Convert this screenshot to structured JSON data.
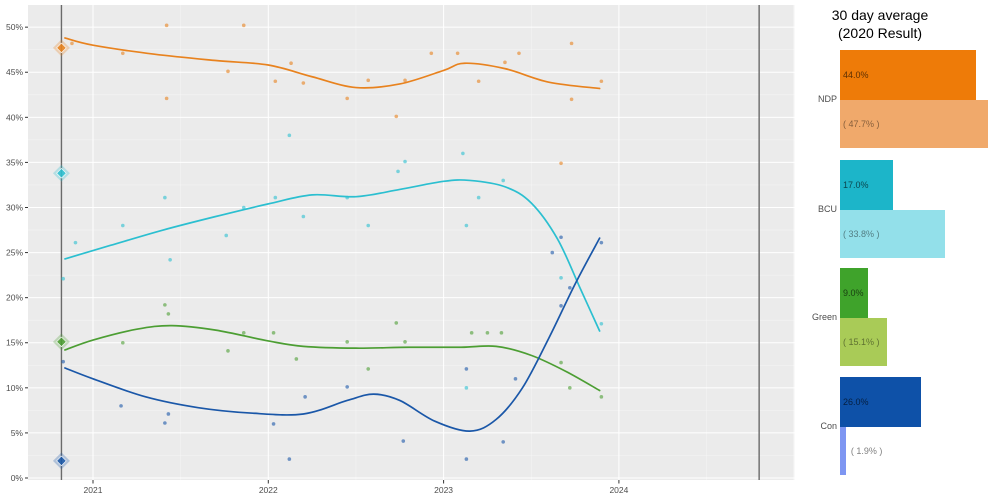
{
  "legend_panel": {
    "title_line1": "30 day average",
    "title_line2": "(2020 Result)",
    "rows": [
      {
        "party": "NDP",
        "avg_pct": 44.0,
        "avg_label": "44.0%",
        "result_pct": 47.7,
        "result_label": "( 47.7% )",
        "avg_color": "#EE7B08",
        "result_color": "#F0A96B"
      },
      {
        "party": "BCU",
        "avg_pct": 17.0,
        "avg_label": "17.0%",
        "result_pct": 33.8,
        "result_label": "( 33.8% )",
        "avg_color": "#1CB5C9",
        "result_color": "#93E0EA"
      },
      {
        "party": "Green",
        "avg_pct": 9.0,
        "avg_label": "9.0%",
        "result_pct": 15.1,
        "result_label": "( 15.1% )",
        "avg_color": "#3FA32B",
        "result_color": "#A9CB57"
      },
      {
        "party": "Con",
        "avg_pct": 26.0,
        "avg_label": "26.0%",
        "result_pct": 1.9,
        "result_label": "( 1.9% )",
        "avg_color": "#0E51A8",
        "result_color": "#7E96F2"
      }
    ]
  },
  "chart_data": {
    "type": "line",
    "title": "",
    "xlabel": "",
    "ylabel": "",
    "grid": "on",
    "x_axis": {
      "tick_values": [
        2021,
        2022,
        2023,
        2024
      ],
      "tick_labels": [
        "2021",
        "2022",
        "2023",
        "2024"
      ],
      "range": [
        2020.63,
        2025.0
      ]
    },
    "y_axis": {
      "tick_values": [
        0,
        5,
        10,
        15,
        20,
        25,
        30,
        35,
        40,
        45,
        50
      ],
      "tick_labels": [
        "0%",
        "5%",
        "10%",
        "15%",
        "20%",
        "25%",
        "30%",
        "35%",
        "40%",
        "45%",
        "50%"
      ],
      "range": [
        0,
        52.5
      ]
    },
    "election_lines": [
      2020.82,
      2024.8
    ],
    "series": [
      {
        "name": "NDP",
        "color": "#E8821E",
        "result_2020": 47.7,
        "trend": [
          [
            2020.84,
            48.8
          ],
          [
            2021.0,
            48.0
          ],
          [
            2021.35,
            47.0
          ],
          [
            2021.7,
            46.3
          ],
          [
            2022.0,
            45.8
          ],
          [
            2022.25,
            44.5
          ],
          [
            2022.5,
            43.3
          ],
          [
            2022.75,
            43.7
          ],
          [
            2023.0,
            45.2
          ],
          [
            2023.12,
            46.0
          ],
          [
            2023.35,
            45.4
          ],
          [
            2023.6,
            43.9
          ],
          [
            2023.89,
            43.2
          ]
        ],
        "polls": [
          [
            2020.88,
            48.2
          ],
          [
            2021.17,
            47.1
          ],
          [
            2021.42,
            50.2
          ],
          [
            2021.42,
            42.1
          ],
          [
            2021.77,
            45.1
          ],
          [
            2021.86,
            50.2
          ],
          [
            2022.04,
            44.0
          ],
          [
            2022.13,
            46.0
          ],
          [
            2022.2,
            43.8
          ],
          [
            2022.45,
            42.1
          ],
          [
            2022.57,
            44.1
          ],
          [
            2022.73,
            40.1
          ],
          [
            2022.78,
            44.1
          ],
          [
            2022.93,
            47.1
          ],
          [
            2023.08,
            47.1
          ],
          [
            2023.2,
            44.0
          ],
          [
            2023.35,
            46.1
          ],
          [
            2023.43,
            47.1
          ],
          [
            2023.67,
            34.9
          ],
          [
            2023.73,
            48.2
          ],
          [
            2023.73,
            42.0
          ],
          [
            2023.9,
            44.0
          ]
        ]
      },
      {
        "name": "BCU",
        "color": "#2BBFD0",
        "result_2020": 33.8,
        "trend": [
          [
            2020.84,
            24.3
          ],
          [
            2021.1,
            25.8
          ],
          [
            2021.4,
            27.5
          ],
          [
            2021.7,
            29.0
          ],
          [
            2022.0,
            30.4
          ],
          [
            2022.25,
            31.4
          ],
          [
            2022.5,
            31.2
          ],
          [
            2022.75,
            32.0
          ],
          [
            2023.0,
            32.9
          ],
          [
            2023.15,
            33.0
          ],
          [
            2023.35,
            32.3
          ],
          [
            2023.5,
            30.5
          ],
          [
            2023.65,
            26.5
          ],
          [
            2023.78,
            21.0
          ],
          [
            2023.89,
            16.3
          ]
        ],
        "polls": [
          [
            2020.83,
            22.1
          ],
          [
            2020.9,
            26.1
          ],
          [
            2021.17,
            28.0
          ],
          [
            2021.41,
            31.1
          ],
          [
            2021.44,
            24.2
          ],
          [
            2021.76,
            26.9
          ],
          [
            2021.86,
            30.0
          ],
          [
            2022.04,
            31.1
          ],
          [
            2022.12,
            38.0
          ],
          [
            2022.2,
            29.0
          ],
          [
            2022.45,
            31.1
          ],
          [
            2022.57,
            28.0
          ],
          [
            2022.74,
            34.0
          ],
          [
            2022.78,
            35.1
          ],
          [
            2023.11,
            36.0
          ],
          [
            2023.13,
            28.0
          ],
          [
            2023.13,
            10.0
          ],
          [
            2023.2,
            31.1
          ],
          [
            2023.34,
            33.0
          ],
          [
            2023.67,
            22.2
          ],
          [
            2023.9,
            17.1
          ]
        ]
      },
      {
        "name": "Green",
        "color": "#4C9E33",
        "result_2020": 15.1,
        "trend": [
          [
            2020.84,
            14.2
          ],
          [
            2021.0,
            15.3
          ],
          [
            2021.25,
            16.5
          ],
          [
            2021.45,
            16.9
          ],
          [
            2021.7,
            16.4
          ],
          [
            2022.0,
            15.2
          ],
          [
            2022.2,
            14.6
          ],
          [
            2022.5,
            14.4
          ],
          [
            2022.8,
            14.5
          ],
          [
            2023.1,
            14.5
          ],
          [
            2023.3,
            14.6
          ],
          [
            2023.5,
            13.6
          ],
          [
            2023.7,
            11.8
          ],
          [
            2023.89,
            9.7
          ]
        ],
        "polls": [
          [
            2021.17,
            15.0
          ],
          [
            2021.41,
            19.2
          ],
          [
            2021.43,
            18.2
          ],
          [
            2021.77,
            14.1
          ],
          [
            2021.86,
            16.1
          ],
          [
            2022.03,
            16.1
          ],
          [
            2022.16,
            13.2
          ],
          [
            2022.45,
            15.1
          ],
          [
            2022.57,
            12.1
          ],
          [
            2022.73,
            17.2
          ],
          [
            2022.78,
            15.1
          ],
          [
            2023.16,
            16.1
          ],
          [
            2023.25,
            16.1
          ],
          [
            2023.33,
            16.1
          ],
          [
            2023.67,
            12.8
          ],
          [
            2023.72,
            10.0
          ],
          [
            2023.9,
            9.0
          ]
        ]
      },
      {
        "name": "Con",
        "color": "#1A57A8",
        "result_2020": 1.9,
        "trend": [
          [
            2020.84,
            12.2
          ],
          [
            2021.0,
            11.0
          ],
          [
            2021.3,
            9.0
          ],
          [
            2021.6,
            7.8
          ],
          [
            2021.9,
            7.2
          ],
          [
            2022.2,
            7.1
          ],
          [
            2022.45,
            8.6
          ],
          [
            2022.6,
            9.3
          ],
          [
            2022.75,
            8.6
          ],
          [
            2022.95,
            6.3
          ],
          [
            2023.15,
            5.2
          ],
          [
            2023.3,
            6.5
          ],
          [
            2023.45,
            10.0
          ],
          [
            2023.6,
            15.5
          ],
          [
            2023.75,
            21.5
          ],
          [
            2023.89,
            26.6
          ]
        ],
        "polls": [
          [
            2020.83,
            12.9
          ],
          [
            2021.16,
            8.0
          ],
          [
            2021.41,
            6.1
          ],
          [
            2021.43,
            7.1
          ],
          [
            2022.03,
            6.0
          ],
          [
            2022.12,
            2.1
          ],
          [
            2022.21,
            9.0
          ],
          [
            2022.45,
            10.1
          ],
          [
            2022.77,
            4.1
          ],
          [
            2023.13,
            12.1
          ],
          [
            2023.13,
            2.1
          ],
          [
            2023.34,
            4.0
          ],
          [
            2023.41,
            11.0
          ],
          [
            2023.62,
            25.0
          ],
          [
            2023.67,
            26.7
          ],
          [
            2023.67,
            19.1
          ],
          [
            2023.72,
            21.1
          ],
          [
            2023.9,
            26.1
          ]
        ]
      }
    ]
  },
  "colors": {
    "panel_bg": "#EBEBEB",
    "grid_major": "#FFFFFF",
    "axis_text": "#4D4D4D",
    "election_line": "#6A6A6A"
  }
}
